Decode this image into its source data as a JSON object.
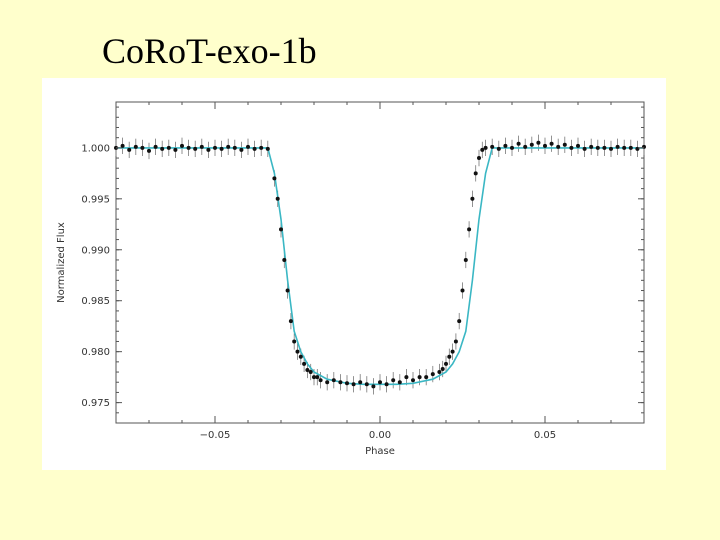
{
  "slide": {
    "title": "CoRoT-exo-1b"
  },
  "chart_data": {
    "type": "scatter",
    "xlabel": "Phase",
    "ylabel": "Normalized Flux",
    "xlim": [
      -0.08,
      0.08
    ],
    "ylim": [
      0.973,
      1.0045
    ],
    "xticks": [
      -0.05,
      0.0,
      0.05
    ],
    "xtick_labels": [
      "−0.05",
      "0.00",
      "0.05"
    ],
    "yticks": [
      0.975,
      0.98,
      0.985,
      0.99,
      0.995,
      1.0
    ],
    "ytick_labels": [
      "0.975",
      "0.980",
      "0.985",
      "0.990",
      "0.995",
      "1.000"
    ],
    "colors": {
      "points": "#111111",
      "errorbars": "#777777",
      "model": "#3ab7c4",
      "frame": "#555555"
    },
    "grid": false,
    "series": [
      {
        "kind": "observations",
        "x": [
          -0.08,
          -0.078,
          -0.076,
          -0.074,
          -0.072,
          -0.07,
          -0.068,
          -0.066,
          -0.064,
          -0.062,
          -0.06,
          -0.058,
          -0.056,
          -0.054,
          -0.052,
          -0.05,
          -0.048,
          -0.046,
          -0.044,
          -0.042,
          -0.04,
          -0.038,
          -0.036,
          -0.034,
          -0.032,
          -0.031,
          -0.03,
          -0.029,
          -0.028,
          -0.027,
          -0.026,
          -0.025,
          -0.024,
          -0.023,
          -0.022,
          -0.021,
          -0.02,
          -0.019,
          -0.018,
          -0.016,
          -0.014,
          -0.012,
          -0.01,
          -0.008,
          -0.006,
          -0.004,
          -0.002,
          0.0,
          0.002,
          0.004,
          0.006,
          0.008,
          0.01,
          0.012,
          0.014,
          0.016,
          0.018,
          0.019,
          0.02,
          0.021,
          0.022,
          0.023,
          0.024,
          0.025,
          0.026,
          0.027,
          0.028,
          0.029,
          0.03,
          0.031,
          0.032,
          0.034,
          0.036,
          0.038,
          0.04,
          0.042,
          0.044,
          0.046,
          0.048,
          0.05,
          0.052,
          0.054,
          0.056,
          0.058,
          0.06,
          0.062,
          0.064,
          0.066,
          0.068,
          0.07,
          0.072,
          0.074,
          0.076,
          0.078,
          0.08
        ],
        "y": [
          1.0,
          1.0002,
          0.9998,
          1.0001,
          1.0,
          0.9997,
          1.0001,
          0.9999,
          1.0,
          0.9998,
          1.0002,
          1.0,
          0.9999,
          1.0001,
          0.9998,
          1.0,
          0.9999,
          1.0001,
          1.0,
          0.9998,
          1.0001,
          0.9999,
          1.0,
          0.9999,
          0.997,
          0.995,
          0.992,
          0.989,
          0.986,
          0.983,
          0.981,
          0.98,
          0.9795,
          0.9788,
          0.9782,
          0.978,
          0.9775,
          0.9775,
          0.9772,
          0.977,
          0.9772,
          0.977,
          0.9769,
          0.9768,
          0.977,
          0.9768,
          0.9766,
          0.977,
          0.9768,
          0.9772,
          0.977,
          0.9775,
          0.9772,
          0.9775,
          0.9775,
          0.9778,
          0.978,
          0.9783,
          0.9788,
          0.9795,
          0.98,
          0.981,
          0.983,
          0.986,
          0.989,
          0.992,
          0.995,
          0.9975,
          0.999,
          0.9998,
          1.0,
          1.0001,
          0.9999,
          1.0002,
          1.0,
          1.0004,
          1.0001,
          1.0003,
          1.0005,
          1.0002,
          1.0004,
          1.0001,
          1.0003,
          1.0,
          1.0002,
          0.9999,
          1.0001,
          1.0,
          1.0,
          0.9999,
          1.0001,
          1.0,
          1.0,
          0.9999,
          1.0001
        ],
        "err": 0.0008
      },
      {
        "kind": "model",
        "x": [
          -0.08,
          -0.034,
          -0.032,
          -0.03,
          -0.028,
          -0.026,
          -0.024,
          -0.022,
          -0.02,
          -0.016,
          -0.01,
          -0.005,
          0.0,
          0.005,
          0.01,
          0.016,
          0.02,
          0.022,
          0.024,
          0.026,
          0.028,
          0.03,
          0.032,
          0.034,
          0.08
        ],
        "y": [
          1.0,
          1.0,
          0.9975,
          0.993,
          0.987,
          0.982,
          0.98,
          0.9788,
          0.978,
          0.9773,
          0.9769,
          0.9768,
          0.9768,
          0.9768,
          0.9769,
          0.9773,
          0.978,
          0.9788,
          0.98,
          0.982,
          0.987,
          0.993,
          0.9975,
          1.0,
          1.0
        ]
      }
    ]
  }
}
